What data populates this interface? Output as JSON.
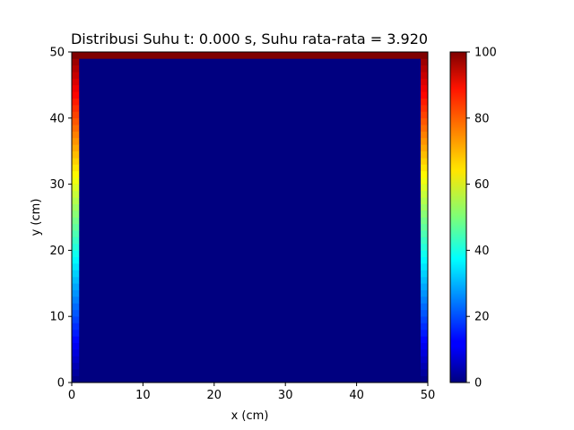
{
  "chart_data": {
    "type": "heatmap",
    "title": "Distribusi Suhu t: 0.000 s, Suhu rata-rata = 3.920",
    "xlabel": "x (cm)",
    "ylabel": "y (cm)",
    "xlim": [
      0,
      50
    ],
    "ylim": [
      0,
      50
    ],
    "x_ticks": [
      "0",
      "10",
      "20",
      "30",
      "40",
      "50"
    ],
    "y_ticks": [
      "0",
      "10",
      "20",
      "30",
      "40",
      "50"
    ],
    "grid": false,
    "colormap": "jet",
    "interior_value": 0,
    "top_boundary_value": 100,
    "side_boundary_value_at_top": 100,
    "side_boundary_value_at_bottom": 0,
    "colorbar": {
      "range": [
        0,
        100
      ],
      "ticks": [
        "0",
        "20",
        "40",
        "60",
        "80",
        "100"
      ]
    }
  }
}
